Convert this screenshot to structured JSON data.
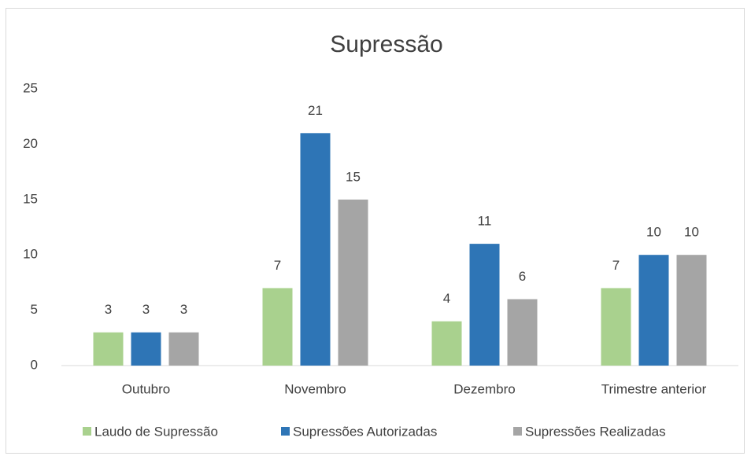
{
  "chart_data": {
    "type": "bar",
    "title": "Supressão",
    "categories": [
      "Outubro",
      "Novembro",
      "Dezembro",
      "Trimestre anterior"
    ],
    "series": [
      {
        "name": "Laudo de Supressão",
        "color": "#a9d18e",
        "values": [
          3,
          7,
          4,
          7
        ]
      },
      {
        "name": "Supressões Autorizadas",
        "color": "#2e75b6",
        "values": [
          3,
          21,
          11,
          10
        ]
      },
      {
        "name": "Supressões Realizadas",
        "color": "#a5a5a5",
        "values": [
          3,
          15,
          6,
          10
        ]
      }
    ],
    "ylim": [
      0,
      25
    ],
    "yticks": [
      0,
      5,
      10,
      15,
      20,
      25
    ],
    "grid": false,
    "legend": "bottom"
  }
}
